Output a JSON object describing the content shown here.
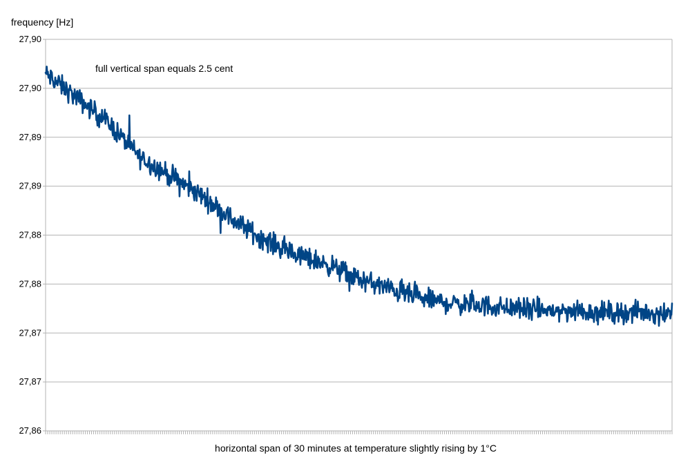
{
  "chart_data": {
    "type": "line",
    "ylabel": "frequency [Hz]",
    "xlabel": "horizontal span of 30 minutes at temperature slightly rising by 1°C",
    "annotation": "full vertical span equals 2.5 cent",
    "y_tick_labels": [
      "27,90",
      "27,90",
      "27,89",
      "27,89",
      "27,88",
      "27,88",
      "27,87",
      "27,87",
      "27,86"
    ],
    "ylim": [
      27.8625,
      27.9025
    ],
    "grid": true,
    "colors": {
      "series": "#004586",
      "grid": "#b3b3b3"
    },
    "series": [
      {
        "x_minutes": [
          0,
          1.5,
          3,
          4.5,
          6,
          7.5,
          9,
          10.5,
          12,
          13.5,
          15,
          16.5,
          18,
          19.5,
          21,
          22.5,
          24,
          25.5,
          27,
          28.5,
          30
        ],
        "values": [
          27.899,
          27.8965,
          27.894,
          27.8905,
          27.8885,
          27.8865,
          27.884,
          27.882,
          27.8805,
          27.8795,
          27.878,
          27.877,
          27.876,
          27.8755,
          27.8753,
          27.875,
          27.8748,
          27.8747,
          27.8746,
          27.8746,
          27.8746
        ]
      }
    ]
  }
}
